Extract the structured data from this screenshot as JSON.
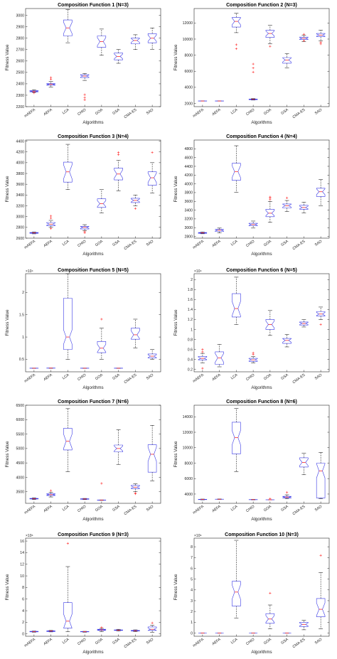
{
  "chart_data": [
    {
      "type": "boxplot",
      "title": "Composition Function 1 (N=3)",
      "xlabel": "Algorithms",
      "ylabel": "Fitness Value",
      "multiplier": "",
      "ylim": [
        2200,
        3060
      ],
      "yticks": [
        2200,
        2300,
        2400,
        2500,
        2600,
        2700,
        2800,
        2900,
        3000
      ],
      "categories": [
        "mAEFA",
        "AEFA",
        "LCA",
        "CHIO",
        "GOA",
        "GSA",
        "CMA-ES",
        "SAO"
      ],
      "boxes": [
        {
          "min": 2325,
          "q1": 2330,
          "median": 2335,
          "q3": 2340,
          "max": 2348,
          "outliers": [
            2320
          ]
        },
        {
          "min": 2372,
          "q1": 2388,
          "median": 2395,
          "q3": 2402,
          "max": 2420,
          "outliers": [
            2440,
            2455
          ]
        },
        {
          "min": 2760,
          "q1": 2820,
          "median": 2890,
          "q3": 2960,
          "max": 3050,
          "outliers": []
        },
        {
          "min": 2430,
          "q1": 2455,
          "median": 2468,
          "q3": 2480,
          "max": 2490,
          "outliers": [
            2260,
            2280,
            2305
          ]
        },
        {
          "min": 2650,
          "q1": 2720,
          "median": 2770,
          "q3": 2820,
          "max": 2880,
          "outliers": []
        },
        {
          "min": 2580,
          "q1": 2610,
          "median": 2640,
          "q3": 2670,
          "max": 2700,
          "outliers": []
        },
        {
          "min": 2700,
          "q1": 2750,
          "median": 2780,
          "q3": 2800,
          "max": 2830,
          "outliers": []
        },
        {
          "min": 2700,
          "q1": 2760,
          "median": 2800,
          "q3": 2840,
          "max": 2890,
          "outliers": []
        }
      ]
    },
    {
      "type": "boxplot",
      "title": "Composition Function 2 (N=3)",
      "xlabel": "Algorithms",
      "ylabel": "Fitness Value",
      "multiplier": "",
      "ylim": [
        1600,
        13800
      ],
      "yticks": [
        2000,
        4000,
        6000,
        8000,
        10000,
        12000
      ],
      "categories": [
        "mAEFA",
        "AEFA",
        "LCA",
        "CHIO",
        "GOA",
        "GSA",
        "CMA-ES",
        "SAO"
      ],
      "boxes": [
        {
          "min": 2280,
          "q1": 2290,
          "median": 2300,
          "q3": 2310,
          "max": 2320,
          "outliers": []
        },
        {
          "min": 2280,
          "q1": 2290,
          "median": 2300,
          "q3": 2310,
          "max": 2320,
          "outliers": []
        },
        {
          "min": 10800,
          "q1": 11500,
          "median": 12200,
          "q3": 12700,
          "max": 13200,
          "outliers": [
            8800,
            9300
          ]
        },
        {
          "min": 2420,
          "q1": 2470,
          "median": 2510,
          "q3": 2550,
          "max": 2600,
          "outliers": [
            5900,
            6400,
            6900
          ]
        },
        {
          "min": 9400,
          "q1": 10200,
          "median": 10700,
          "q3": 11100,
          "max": 11700,
          "outliers": [
            9100
          ]
        },
        {
          "min": 6400,
          "q1": 7000,
          "median": 7400,
          "q3": 7700,
          "max": 8200,
          "outliers": []
        },
        {
          "min": 9700,
          "q1": 9950,
          "median": 10100,
          "q3": 10250,
          "max": 10500,
          "outliers": [
            9800,
            10600
          ]
        },
        {
          "min": 9800,
          "q1": 10300,
          "median": 10500,
          "q3": 10700,
          "max": 11100,
          "outliers": [
            9400,
            9600
          ]
        }
      ]
    },
    {
      "type": "boxplot",
      "title": "Composition Function 3 (N=4)",
      "xlabel": "Algorithms",
      "ylabel": "Fitness Value",
      "multiplier": "",
      "ylim": [
        2600,
        4420
      ],
      "yticks": [
        2600,
        2800,
        3000,
        3200,
        3400,
        3600,
        3800,
        4000,
        4200,
        4400
      ],
      "categories": [
        "mAEFA",
        "AEFA",
        "LCA",
        "CHIO",
        "GOA",
        "GSA",
        "CMA-ES",
        "SAO"
      ],
      "boxes": [
        {
          "min": 2680,
          "q1": 2690,
          "median": 2700,
          "q3": 2705,
          "max": 2715,
          "outliers": []
        },
        {
          "min": 2800,
          "q1": 2830,
          "median": 2860,
          "q3": 2890,
          "max": 2930,
          "outliers": [
            2780,
            2970,
            3010
          ]
        },
        {
          "min": 3500,
          "q1": 3640,
          "median": 3830,
          "q3": 4010,
          "max": 4340,
          "outliers": []
        },
        {
          "min": 2740,
          "q1": 2770,
          "median": 2800,
          "q3": 2820,
          "max": 2850,
          "outliers": [
            2700,
            2720
          ]
        },
        {
          "min": 3070,
          "q1": 3170,
          "median": 3240,
          "q3": 3330,
          "max": 3500,
          "outliers": []
        },
        {
          "min": 3480,
          "q1": 3680,
          "median": 3790,
          "q3": 3900,
          "max": 4040,
          "outliers": [
            4150,
            4190
          ]
        },
        {
          "min": 3200,
          "q1": 3260,
          "median": 3300,
          "q3": 3340,
          "max": 3400,
          "outliers": [
            3150
          ]
        },
        {
          "min": 3440,
          "q1": 3580,
          "median": 3720,
          "q3": 3830,
          "max": 4000,
          "outliers": [
            4190
          ]
        }
      ]
    },
    {
      "type": "boxplot",
      "title": "Composition Function 4 (N=4)",
      "xlabel": "Algorithms",
      "ylabel": "Fitness Value",
      "multiplier": "",
      "ylim": [
        2760,
        5000
      ],
      "yticks": [
        2800,
        3000,
        3200,
        3400,
        3600,
        3800,
        4000,
        4200,
        4400,
        4600,
        4800
      ],
      "categories": [
        "mAEFA",
        "AEFA",
        "LCA",
        "CHIO",
        "GOA",
        "GSA",
        "CMA-ES",
        "SAO"
      ],
      "boxes": [
        {
          "min": 2860,
          "q1": 2870,
          "median": 2880,
          "q3": 2890,
          "max": 2900,
          "outliers": []
        },
        {
          "min": 2880,
          "q1": 2910,
          "median": 2940,
          "q3": 2960,
          "max": 2990,
          "outliers": []
        },
        {
          "min": 3810,
          "q1": 4080,
          "median": 4280,
          "q3": 4470,
          "max": 4870,
          "outliers": []
        },
        {
          "min": 2990,
          "q1": 3040,
          "median": 3070,
          "q3": 3100,
          "max": 3150,
          "outliers": []
        },
        {
          "min": 3120,
          "q1": 3250,
          "median": 3330,
          "q3": 3420,
          "max": 3600,
          "outliers": [
            3640,
            3680,
            3700
          ]
        },
        {
          "min": 3370,
          "q1": 3450,
          "median": 3500,
          "q3": 3540,
          "max": 3620,
          "outliers": [
            3680
          ]
        },
        {
          "min": 3340,
          "q1": 3420,
          "median": 3460,
          "q3": 3510,
          "max": 3580,
          "outliers": []
        },
        {
          "min": 3500,
          "q1": 3710,
          "median": 3820,
          "q3": 3900,
          "max": 4100,
          "outliers": []
        }
      ]
    },
    {
      "type": "boxplot",
      "title": "Composition Function 5 (N=5)",
      "xlabel": "Algorithms",
      "ylabel": "Fitness Value",
      "multiplier": "×10⁴",
      "ylim": [
        0.22,
        2.42
      ],
      "yticks": [
        0.5,
        1,
        1.5,
        2
      ],
      "categories": [
        "mAEFA",
        "AEFA",
        "LCA",
        "CHIO",
        "GOA",
        "GSA",
        "CMA-ES",
        "SAO"
      ],
      "boxes": [
        {
          "min": 0.295,
          "q1": 0.298,
          "median": 0.3,
          "q3": 0.302,
          "max": 0.305,
          "outliers": []
        },
        {
          "min": 0.298,
          "q1": 0.3,
          "median": 0.302,
          "q3": 0.304,
          "max": 0.306,
          "outliers": []
        },
        {
          "min": 0.5,
          "q1": 0.72,
          "median": 1.0,
          "q3": 1.87,
          "max": 2.42,
          "outliers": []
        },
        {
          "min": 0.295,
          "q1": 0.298,
          "median": 0.3,
          "q3": 0.302,
          "max": 0.305,
          "outliers": []
        },
        {
          "min": 0.5,
          "q1": 0.65,
          "median": 0.75,
          "q3": 0.9,
          "max": 1.2,
          "outliers": [
            1.4
          ]
        },
        {
          "min": 0.295,
          "q1": 0.298,
          "median": 0.3,
          "q3": 0.302,
          "max": 0.305,
          "outliers": []
        },
        {
          "min": 0.75,
          "q1": 0.95,
          "median": 1.05,
          "q3": 1.2,
          "max": 1.4,
          "outliers": []
        },
        {
          "min": 0.5,
          "q1": 0.53,
          "median": 0.57,
          "q3": 0.62,
          "max": 0.72,
          "outliers": []
        }
      ]
    },
    {
      "type": "boxplot",
      "title": "Composition Function 6 (N=5)",
      "xlabel": "Algorithms",
      "ylabel": "Fitness Value",
      "multiplier": "×10⁴",
      "ylim": [
        0.15,
        2.12
      ],
      "yticks": [
        0.2,
        0.4,
        0.6,
        0.8,
        1,
        1.2,
        1.4,
        1.6,
        1.8,
        2
      ],
      "categories": [
        "mAEFA",
        "AEFA",
        "LCA",
        "CHIO",
        "GOA",
        "GSA",
        "CMA-ES",
        "SAO"
      ],
      "boxes": [
        {
          "min": 0.33,
          "q1": 0.39,
          "median": 0.42,
          "q3": 0.46,
          "max": 0.52,
          "outliers": [
            0.22,
            0.55,
            0.6
          ]
        },
        {
          "min": 0.25,
          "q1": 0.3,
          "median": 0.43,
          "q3": 0.55,
          "max": 0.7,
          "outliers": []
        },
        {
          "min": 1.1,
          "q1": 1.25,
          "median": 1.42,
          "q3": 1.72,
          "max": 2.05,
          "outliers": []
        },
        {
          "min": 0.33,
          "q1": 0.36,
          "median": 0.39,
          "q3": 0.42,
          "max": 0.46,
          "outliers": [
            0.5,
            0.53
          ]
        },
        {
          "min": 0.88,
          "q1": 1.0,
          "median": 1.1,
          "q3": 1.2,
          "max": 1.38,
          "outliers": []
        },
        {
          "min": 0.65,
          "q1": 0.72,
          "median": 0.78,
          "q3": 0.82,
          "max": 0.9,
          "outliers": []
        },
        {
          "min": 1.05,
          "q1": 1.09,
          "median": 1.12,
          "q3": 1.15,
          "max": 1.2,
          "outliers": []
        },
        {
          "min": 1.2,
          "q1": 1.27,
          "median": 1.31,
          "q3": 1.36,
          "max": 1.45,
          "outliers": [
            1.1
          ]
        }
      ]
    },
    {
      "type": "boxplot",
      "title": "Composition Function 7 (N=6)",
      "xlabel": "Algorithms",
      "ylabel": "Fitness Value",
      "multiplier": "",
      "ylim": [
        3100,
        6500
      ],
      "yticks": [
        3500,
        4000,
        4500,
        5000,
        5500,
        6000,
        6500
      ],
      "categories": [
        "mAEFA",
        "AEFA",
        "LCA",
        "CHIO",
        "GOA",
        "GSA",
        "CMA-ES",
        "SAO"
      ],
      "boxes": [
        {
          "min": 3230,
          "q1": 3250,
          "median": 3260,
          "q3": 3270,
          "max": 3290,
          "outliers": []
        },
        {
          "min": 3320,
          "q1": 3370,
          "median": 3400,
          "q3": 3430,
          "max": 3480,
          "outliers": [
            3540
          ]
        },
        {
          "min": 4200,
          "q1": 4950,
          "median": 5250,
          "q3": 5700,
          "max": 6380,
          "outliers": []
        },
        {
          "min": 3230,
          "q1": 3240,
          "median": 3250,
          "q3": 3260,
          "max": 3270,
          "outliers": []
        },
        {
          "min": 3200,
          "q1": 3205,
          "median": 3210,
          "q3": 3215,
          "max": 3220,
          "outliers": [
            3790
          ]
        },
        {
          "min": 4450,
          "q1": 4880,
          "median": 5000,
          "q3": 5120,
          "max": 5650,
          "outliers": []
        },
        {
          "min": 3500,
          "q1": 3610,
          "median": 3660,
          "q3": 3720,
          "max": 3780,
          "outliers": [
            3430,
            3450
          ]
        },
        {
          "min": 3870,
          "q1": 4180,
          "median": 4800,
          "q3": 5130,
          "max": 5800,
          "outliers": []
        }
      ]
    },
    {
      "type": "boxplot",
      "title": "Composition Function 8 (N=6)",
      "xlabel": "Algorithms",
      "ylabel": "Fitness Value",
      "multiplier": "",
      "ylim": [
        2800,
        15500
      ],
      "yticks": [
        4000,
        6000,
        8000,
        10000,
        12000,
        14000
      ],
      "categories": [
        "mAEFA",
        "AEFA",
        "LCA",
        "CHIO",
        "GOA",
        "GSA",
        "CMA-ES",
        "SAO"
      ],
      "boxes": [
        {
          "min": 3250,
          "q1": 3280,
          "median": 3300,
          "q3": 3320,
          "max": 3350,
          "outliers": []
        },
        {
          "min": 3300,
          "q1": 3320,
          "median": 3330,
          "q3": 3340,
          "max": 3360,
          "outliers": []
        },
        {
          "min": 6900,
          "q1": 9200,
          "median": 11300,
          "q3": 13300,
          "max": 15100,
          "outliers": []
        },
        {
          "min": 3250,
          "q1": 3270,
          "median": 3280,
          "q3": 3290,
          "max": 3310,
          "outliers": []
        },
        {
          "min": 3240,
          "q1": 3250,
          "median": 3260,
          "q3": 3270,
          "max": 3280,
          "outliers": [
            3400
          ]
        },
        {
          "min": 3400,
          "q1": 3500,
          "median": 3600,
          "q3": 3700,
          "max": 3900,
          "outliers": [
            4200
          ]
        },
        {
          "min": 6500,
          "q1": 7500,
          "median": 8100,
          "q3": 8700,
          "max": 9300,
          "outliers": []
        },
        {
          "min": 3400,
          "q1": 3500,
          "median": 7000,
          "q3": 8000,
          "max": 9400,
          "outliers": []
        }
      ]
    },
    {
      "type": "boxplot",
      "title": "Composition Function 9 (N=3)",
      "xlabel": "Algorithms",
      "ylabel": "Fitness Value",
      "multiplier": "×10⁶",
      "ylim": [
        -0.4,
        16.5
      ],
      "yticks": [
        0,
        2,
        4,
        6,
        8,
        10,
        12,
        14,
        16
      ],
      "categories": [
        "mAEFA",
        "AEFA",
        "LCA",
        "CHIO",
        "GOA",
        "GSA",
        "CMA-ES",
        "SAO"
      ],
      "boxes": [
        {
          "min": 0.3,
          "q1": 0.35,
          "median": 0.4,
          "q3": 0.45,
          "max": 0.5,
          "outliers": []
        },
        {
          "min": 0.35,
          "q1": 0.42,
          "median": 0.5,
          "q3": 0.55,
          "max": 0.6,
          "outliers": []
        },
        {
          "min": 0.4,
          "q1": 1.0,
          "median": 2.2,
          "q3": 5.4,
          "max": 11.6,
          "outliers": [
            15.6
          ]
        },
        {
          "min": 0.3,
          "q1": 0.35,
          "median": 0.4,
          "q3": 0.42,
          "max": 0.45,
          "outliers": []
        },
        {
          "min": 0.4,
          "q1": 0.6,
          "median": 0.7,
          "q3": 0.8,
          "max": 0.95,
          "outliers": [
            1.1
          ]
        },
        {
          "min": 0.5,
          "q1": 0.6,
          "median": 0.65,
          "q3": 0.7,
          "max": 0.8,
          "outliers": []
        },
        {
          "min": 0.4,
          "q1": 0.5,
          "median": 0.55,
          "q3": 0.6,
          "max": 0.7,
          "outliers": []
        },
        {
          "min": 0.3,
          "q1": 0.6,
          "median": 0.8,
          "q3": 1.2,
          "max": 1.5,
          "outliers": [
            1.9
          ]
        }
      ]
    },
    {
      "type": "boxplot",
      "title": "Composition Function 10 (N=3)",
      "xlabel": "Algorithms",
      "ylabel": "Fitness Value",
      "multiplier": "×10⁶",
      "ylim": [
        -0.3,
        8.8
      ],
      "yticks": [
        0,
        1,
        2,
        3,
        4,
        5,
        6,
        7,
        8
      ],
      "categories": [
        "mAEFA",
        "AEFA",
        "LCA",
        "CHIO",
        "GOA",
        "GSA",
        "CMA-ES",
        "SAO"
      ],
      "boxes": [
        {
          "min": 0,
          "q1": 0,
          "median": 0,
          "q3": 0,
          "max": 0,
          "outliers": []
        },
        {
          "min": 0,
          "q1": 0,
          "median": 0,
          "q3": 0,
          "max": 0,
          "outliers": []
        },
        {
          "min": 1.4,
          "q1": 2.5,
          "median": 3.8,
          "q3": 4.8,
          "max": 8.6,
          "outliers": []
        },
        {
          "min": 0,
          "q1": 0,
          "median": 0,
          "q3": 0,
          "max": 0,
          "outliers": []
        },
        {
          "min": 0.4,
          "q1": 0.9,
          "median": 1.3,
          "q3": 1.8,
          "max": 2.6,
          "outliers": [
            3.7
          ]
        },
        {
          "min": 0,
          "q1": 0,
          "median": 0,
          "q3": 0,
          "max": 0,
          "outliers": []
        },
        {
          "min": 0.3,
          "q1": 0.6,
          "median": 0.8,
          "q3": 1.0,
          "max": 1.2,
          "outliers": []
        },
        {
          "min": 0.4,
          "q1": 1.5,
          "median": 2.2,
          "q3": 3.2,
          "max": 5.6,
          "outliers": [
            7.2
          ]
        }
      ]
    }
  ]
}
